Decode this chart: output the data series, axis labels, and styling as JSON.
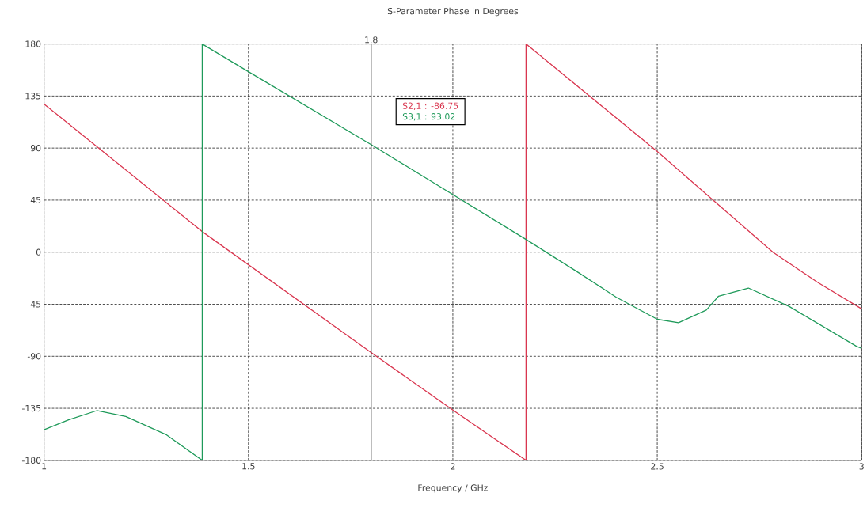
{
  "chart_data": {
    "type": "line",
    "title": "S-Parameter Phase in Degrees",
    "xlabel": "Frequency / GHz",
    "series": [
      {
        "name": "S2,1 : -86.75",
        "color": "#d9364f",
        "x": [
          1,
          1.39,
          1.8,
          2.0,
          2.179,
          2.179,
          2.5,
          2.783,
          2.892,
          3
        ],
        "values": [
          128,
          17,
          -86.75,
          -136.5,
          -180,
          180,
          87,
          0,
          -26,
          -49
        ]
      },
      {
        "name": "S3,1 : 93.02",
        "color": "#1f9a5a",
        "x": [
          1,
          1.06,
          1.129,
          1.2,
          1.3,
          1.387,
          1.387,
          1.5,
          1.8,
          1.93,
          2.179,
          2.3,
          2.4,
          2.5,
          2.552,
          2.62,
          2.65,
          2.723,
          2.823,
          2.988,
          3
        ],
        "values": [
          -153.5,
          -145,
          -137,
          -142,
          -158,
          -180,
          180,
          156,
          93.02,
          65,
          11,
          -16,
          -39,
          -58,
          -61,
          -50,
          -38,
          -31,
          -47,
          -81.5,
          -83
        ]
      }
    ],
    "xlim": [
      1,
      3
    ],
    "ylim": [
      -180,
      180
    ],
    "xticks": [
      1,
      1.5,
      2,
      2.5,
      3
    ],
    "yticks": [
      -180,
      -135,
      -90,
      -45,
      0,
      45,
      90,
      135,
      180
    ],
    "ref_lines": [
      {
        "axis": "x",
        "value": 1.8,
        "label": "1.8",
        "color": "#000000"
      }
    ],
    "grid": true,
    "legend": "top",
    "marker": "none",
    "line_style": "solid"
  }
}
